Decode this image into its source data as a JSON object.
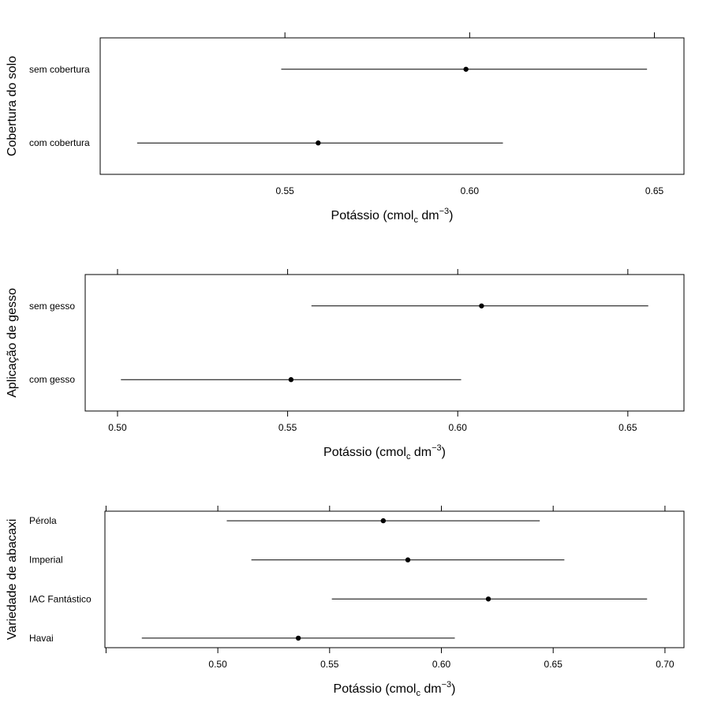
{
  "chart_data": [
    {
      "type": "dotplot-interval",
      "ylabel": "Cobertura do solo",
      "xlabel": {
        "prefix": "Potássio (cmol",
        "sub": "c",
        "mid": " dm",
        "sup": "−3",
        "suffix": ")"
      },
      "xlim": [
        0.5,
        0.658
      ],
      "xticks": [
        0.55,
        0.6,
        0.65
      ],
      "xtick_labels": [
        "0.55",
        "0.60",
        "0.65"
      ],
      "categories": [
        {
          "label": "sem cobertura",
          "estimate": 0.599,
          "lower": 0.549,
          "upper": 0.648
        },
        {
          "label": "com cobertura",
          "estimate": 0.559,
          "lower": 0.51,
          "upper": 0.609
        }
      ]
    },
    {
      "type": "dotplot-interval",
      "ylabel": "Aplicação de gesso",
      "xlabel": {
        "prefix": "Potássio (cmol",
        "sub": "c",
        "mid": " dm",
        "sup": "−3",
        "suffix": ")"
      },
      "xlim": [
        0.4905,
        0.6665
      ],
      "xticks": [
        0.5,
        0.55,
        0.6,
        0.65
      ],
      "xtick_labels": [
        "0.50",
        "0.55",
        "0.60",
        "0.65"
      ],
      "categories": [
        {
          "label": "sem gesso",
          "estimate": 0.607,
          "lower": 0.557,
          "upper": 0.656
        },
        {
          "label": "com gesso",
          "estimate": 0.551,
          "lower": 0.501,
          "upper": 0.601
        }
      ]
    },
    {
      "type": "dotplot-interval",
      "ylabel": "Variedade de abacaxi",
      "xlabel": {
        "prefix": "Potássio (cmol",
        "sub": "c",
        "mid": " dm",
        "sup": "−3",
        "suffix": ")"
      },
      "xlim": [
        0.4495,
        0.7085
      ],
      "xticks": [
        0.45,
        0.5,
        0.55,
        0.6,
        0.65,
        0.7
      ],
      "xtick_labels": [
        "",
        "0.50",
        "0.55",
        "0.60",
        "0.65",
        "0.70"
      ],
      "categories": [
        {
          "label": "Pérola",
          "estimate": 0.574,
          "lower": 0.504,
          "upper": 0.644
        },
        {
          "label": "Imperial",
          "estimate": 0.585,
          "lower": 0.515,
          "upper": 0.655
        },
        {
          "label": "IAC Fantástico",
          "estimate": 0.621,
          "lower": 0.551,
          "upper": 0.692
        },
        {
          "label": "Havai",
          "estimate": 0.536,
          "lower": 0.466,
          "upper": 0.606
        }
      ]
    }
  ]
}
